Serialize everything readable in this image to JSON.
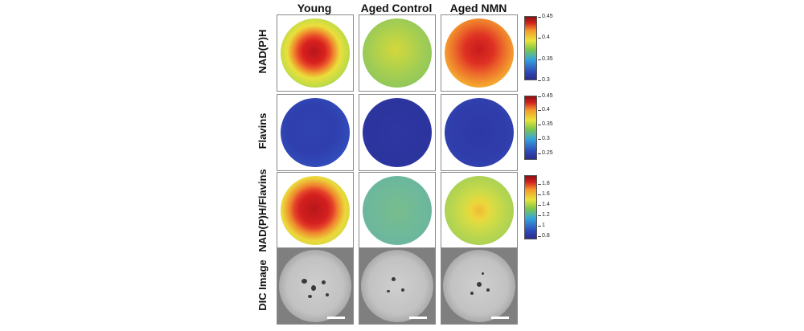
{
  "columns": [
    "Young",
    "Aged Control",
    "Aged NMN"
  ],
  "rows": [
    "NAD(P)H",
    "Flavins",
    "NAD(P)H/Flavins",
    "DIC Image"
  ],
  "colorbars": [
    {
      "ticks": [
        "0.45",
        "0.4",
        "0.35",
        "0.3"
      ]
    },
    {
      "ticks": [
        "0.45",
        "0.4",
        "0.35",
        "0.3",
        "0.25"
      ]
    },
    {
      "ticks": [
        "1.8",
        "1.6",
        "1.4",
        "1.2",
        "1",
        "0.8"
      ]
    }
  ],
  "colors": {
    "colormap_low": "#2b2c8c",
    "colormap_mid": "#7ec84a",
    "colormap_high": "#d4231f"
  }
}
